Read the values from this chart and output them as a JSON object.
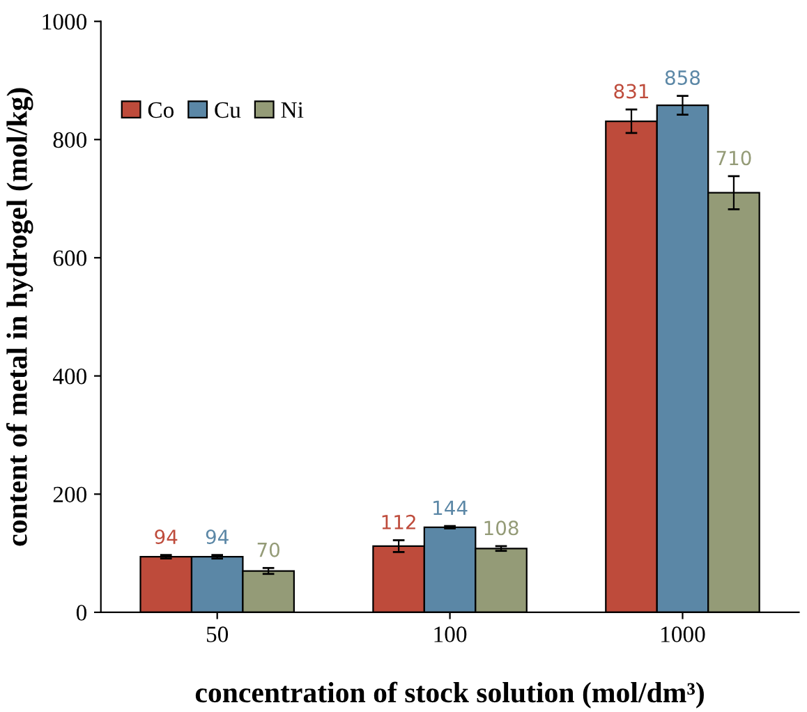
{
  "chart_data": {
    "type": "bar",
    "xlabel": "concentration of stock solution (mol/dm³)",
    "ylabel": "content of metal in hydrogel (mol/kg)",
    "categories": [
      "50",
      "100",
      "1000"
    ],
    "series": [
      {
        "name": "Co",
        "color": "#be4b3b",
        "values": [
          94,
          112,
          831
        ],
        "errors": [
          3,
          10,
          20
        ]
      },
      {
        "name": "Cu",
        "color": "#5b87a6",
        "values": [
          94,
          144,
          858
        ],
        "errors": [
          3,
          2,
          16
        ]
      },
      {
        "name": "Ni",
        "color": "#949b77",
        "values": [
          70,
          108,
          710
        ],
        "errors": [
          5,
          4,
          28
        ]
      }
    ],
    "ylim": [
      0,
      1000
    ],
    "yticks": [
      0,
      200,
      400,
      600,
      800,
      1000
    ],
    "data_labels": true,
    "legend": "top left",
    "grid": false
  }
}
